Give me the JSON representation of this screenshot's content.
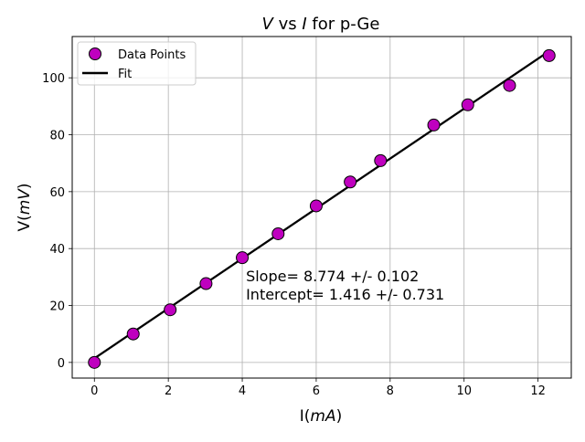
{
  "chart_data": {
    "type": "scatter",
    "title_parts": [
      "V",
      " vs ",
      "I",
      " for p-Ge"
    ],
    "xlabel_parts": [
      "I(",
      "mA",
      ")"
    ],
    "ylabel_parts": [
      "V(",
      "mV",
      ")"
    ],
    "xlim": [
      -0.6,
      12.9
    ],
    "ylim": [
      -5.5,
      114.5
    ],
    "xticks": [
      0,
      2,
      4,
      6,
      8,
      10,
      12
    ],
    "yticks": [
      0,
      20,
      40,
      60,
      80,
      100
    ],
    "grid": true,
    "legend_position": "top-left",
    "series": [
      {
        "name": "Data Points",
        "kind": "scatter",
        "color": "#bf00bf",
        "edge_color": "#000000",
        "x": [
          0.0,
          1.05,
          2.05,
          3.02,
          4.0,
          4.97,
          6.0,
          6.92,
          7.74,
          9.18,
          10.1,
          11.23,
          12.3
        ],
        "y": [
          0.0,
          10.0,
          18.5,
          27.7,
          36.8,
          45.2,
          55.0,
          63.4,
          70.9,
          83.4,
          90.5,
          97.3,
          107.8
        ]
      },
      {
        "name": "Fit",
        "kind": "line",
        "color": "#000000",
        "slope": 8.774,
        "intercept": 1.416,
        "x_range": [
          0.0,
          12.3
        ]
      }
    ],
    "annotation": {
      "lines": [
        "Slope= 8.774 +/- 0.102",
        "Intercept= 1.416 +/- 0.731"
      ],
      "anchor": [
        4.1,
        28.5
      ]
    }
  }
}
